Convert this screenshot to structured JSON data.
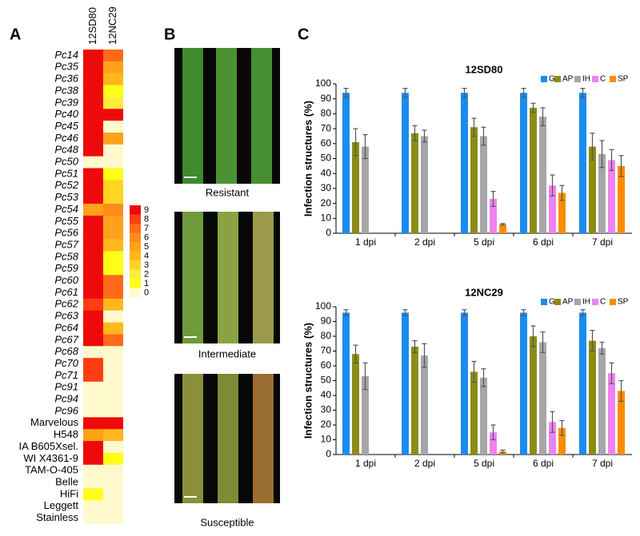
{
  "panel_labels": [
    "A",
    "B",
    "C"
  ],
  "photos": {
    "labels": [
      "Resistant",
      "Intermediate",
      "Susceptible"
    ]
  },
  "chart_data": [
    {
      "type": "heatmap",
      "columns": [
        "12SD80",
        "12NC29"
      ],
      "rows": [
        "Pc14",
        "Pc35",
        "Pc36",
        "Pc38",
        "Pc39",
        "Pc40",
        "Pc45",
        "Pc46",
        "Pc48",
        "Pc50",
        "Pc51",
        "Pc52",
        "Pc53",
        "Pc54",
        "Pc55",
        "Pc56",
        "Pc57",
        "Pc58",
        "Pc59",
        "Pc60",
        "Pc61",
        "Pc62",
        "Pc63",
        "Pc64",
        "Pc67",
        "Pc68",
        "Pc70",
        "Pc71",
        "Pc91",
        "Pc94",
        "Pc96",
        "Marvelous",
        "H548",
        "IA B605Xsel.",
        "WI X4361-9",
        "TAM-O-405",
        "Belle",
        "HiFi",
        "Leggett",
        "Stainless"
      ],
      "values": [
        [
          9,
          7
        ],
        [
          9,
          5
        ],
        [
          9,
          4
        ],
        [
          9,
          1
        ],
        [
          9,
          2
        ],
        [
          9,
          9
        ],
        [
          9,
          0
        ],
        [
          9,
          5
        ],
        [
          9,
          0
        ],
        [
          0,
          0
        ],
        [
          9,
          1
        ],
        [
          9,
          3
        ],
        [
          9,
          3
        ],
        [
          5,
          6
        ],
        [
          9,
          5
        ],
        [
          9,
          5
        ],
        [
          9,
          4
        ],
        [
          9,
          1
        ],
        [
          9,
          1
        ],
        [
          9,
          7
        ],
        [
          9,
          7
        ],
        [
          8,
          4
        ],
        [
          9,
          0
        ],
        [
          9,
          4
        ],
        [
          9,
          7
        ],
        [
          0,
          0
        ],
        [
          8,
          0
        ],
        [
          8,
          0
        ],
        [
          0,
          0
        ],
        [
          0,
          0
        ],
        [
          0,
          0
        ],
        [
          9,
          9
        ],
        [
          5,
          4
        ],
        [
          9,
          0
        ],
        [
          9,
          1
        ],
        [
          0,
          0
        ],
        [
          0,
          0
        ],
        [
          1,
          0
        ],
        [
          0,
          0
        ],
        [
          0,
          0
        ]
      ],
      "colors": [
        "#fffacd",
        "#ffff1a",
        "#ffec3a",
        "#ffd522",
        "#ffb81c",
        "#ffa21a",
        "#ff8c1a",
        "#ff6a1a",
        "#ff3d14",
        "#ee0a0a"
      ],
      "legend_ticks": [
        9,
        8,
        7,
        6,
        5,
        4,
        3,
        2,
        1,
        0
      ]
    },
    {
      "type": "bar",
      "title": "12SD80",
      "y_label": "Infection structures (%)",
      "categories": [
        "1 dpi",
        "2 dpi",
        "5 dpi",
        "6 dpi",
        "7 dpi"
      ],
      "ylim": [
        0,
        100
      ],
      "yticks": [
        0,
        10,
        20,
        30,
        40,
        50,
        60,
        70,
        80,
        90,
        100
      ],
      "series": [
        {
          "name": "G",
          "color": "#1a8cf0",
          "values": [
            94,
            94,
            94,
            94,
            94
          ],
          "errors": [
            3,
            3,
            3,
            3,
            3
          ]
        },
        {
          "name": "AP",
          "color": "#8c8c14",
          "values": [
            61,
            67,
            71,
            84,
            58
          ],
          "errors": [
            9,
            5,
            6,
            3,
            9
          ]
        },
        {
          "name": "IH",
          "color": "#a6a6a6",
          "values": [
            58,
            65,
            65,
            78,
            53
          ],
          "errors": [
            8,
            4,
            6,
            6,
            9
          ]
        },
        {
          "name": "C",
          "color": "#ee82ee",
          "values": [
            null,
            null,
            23,
            32,
            49
          ],
          "errors": [
            null,
            null,
            5,
            7,
            7
          ]
        },
        {
          "name": "SP",
          "color": "#ff8c00",
          "values": [
            null,
            null,
            6,
            27,
            45
          ],
          "errors": [
            null,
            null,
            0.5,
            5,
            7
          ]
        }
      ]
    },
    {
      "type": "bar",
      "title": "12NC29",
      "y_label": "Infection structures (%)",
      "categories": [
        "1 dpi",
        "2 dpi",
        "5 dpi",
        "6 dpi",
        "7 dpi"
      ],
      "ylim": [
        0,
        100
      ],
      "yticks": [
        0,
        10,
        20,
        30,
        40,
        50,
        60,
        70,
        80,
        90,
        100
      ],
      "series": [
        {
          "name": "G",
          "color": "#1a8cf0",
          "values": [
            96,
            96,
            96,
            96,
            96
          ],
          "errors": [
            2,
            2,
            2,
            2,
            2
          ]
        },
        {
          "name": "AP",
          "color": "#8c8c14",
          "values": [
            68,
            73,
            56,
            80,
            77
          ],
          "errors": [
            6,
            4,
            7,
            7,
            7
          ]
        },
        {
          "name": "IH",
          "color": "#a6a6a6",
          "values": [
            53,
            67,
            52,
            76,
            72
          ],
          "errors": [
            9,
            8,
            6,
            7,
            4
          ]
        },
        {
          "name": "C",
          "color": "#ee82ee",
          "values": [
            null,
            null,
            15,
            22,
            55
          ],
          "errors": [
            null,
            null,
            5,
            7,
            7
          ]
        },
        {
          "name": "SP",
          "color": "#ff8c00",
          "values": [
            null,
            null,
            2,
            18,
            43
          ],
          "errors": [
            null,
            null,
            1,
            5,
            7
          ]
        }
      ]
    }
  ]
}
